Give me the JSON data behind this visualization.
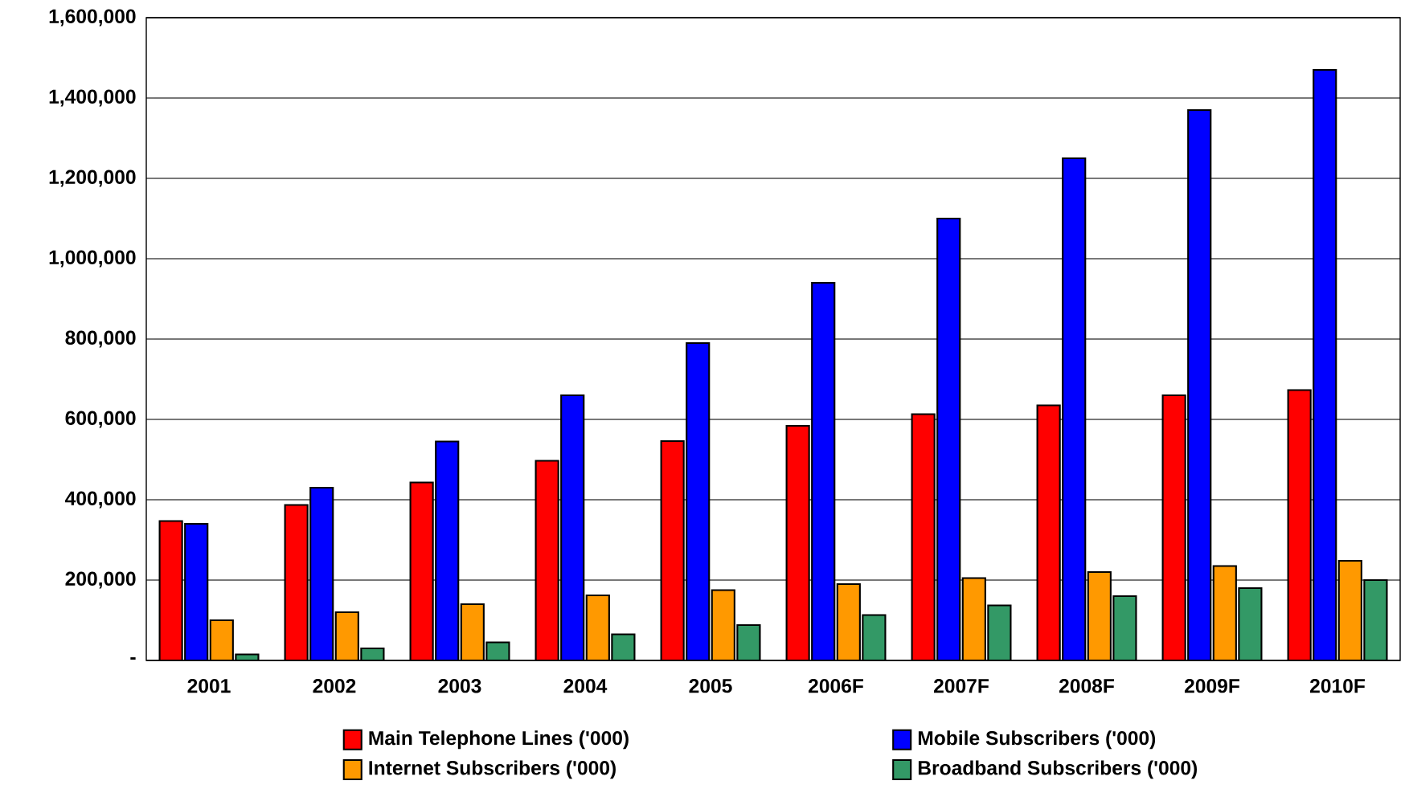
{
  "chart_data": {
    "type": "bar",
    "categories": [
      "2001",
      "2002",
      "2003",
      "2004",
      "2005",
      "2006F",
      "2007F",
      "2008F",
      "2009F",
      "2010F"
    ],
    "series": [
      {
        "name": "Main Telephone Lines ('000)",
        "color": "#ff0000",
        "values": [
          347000,
          387000,
          443000,
          497000,
          546000,
          584000,
          613000,
          635000,
          660000,
          673000
        ]
      },
      {
        "name": "Mobile Subscribers ('000)",
        "color": "#0000ff",
        "values": [
          340000,
          430000,
          545000,
          660000,
          790000,
          940000,
          1100000,
          1250000,
          1370000,
          1470000
        ]
      },
      {
        "name": "Internet Subscribers ('000)",
        "color": "#ff9900",
        "values": [
          100000,
          120000,
          140000,
          162000,
          175000,
          190000,
          205000,
          220000,
          235000,
          248000
        ]
      },
      {
        "name": "Broadband Subscribers ('000)",
        "color": "#339966",
        "values": [
          15000,
          30000,
          45000,
          65000,
          88000,
          113000,
          137000,
          160000,
          180000,
          200000
        ]
      }
    ],
    "ylim": [
      0,
      1600000
    ],
    "yticks": [
      {
        "value": 0,
        "label": "-"
      },
      {
        "value": 200000,
        "label": "200,000"
      },
      {
        "value": 400000,
        "label": "400,000"
      },
      {
        "value": 600000,
        "label": "600,000"
      },
      {
        "value": 800000,
        "label": "800,000"
      },
      {
        "value": 1000000,
        "label": "1,000,000"
      },
      {
        "value": 1200000,
        "label": "1,200,000"
      },
      {
        "value": 1400000,
        "label": "1,400,000"
      },
      {
        "value": 1600000,
        "label": "1,600,000"
      }
    ],
    "grid": "y",
    "legend": "bottom"
  }
}
